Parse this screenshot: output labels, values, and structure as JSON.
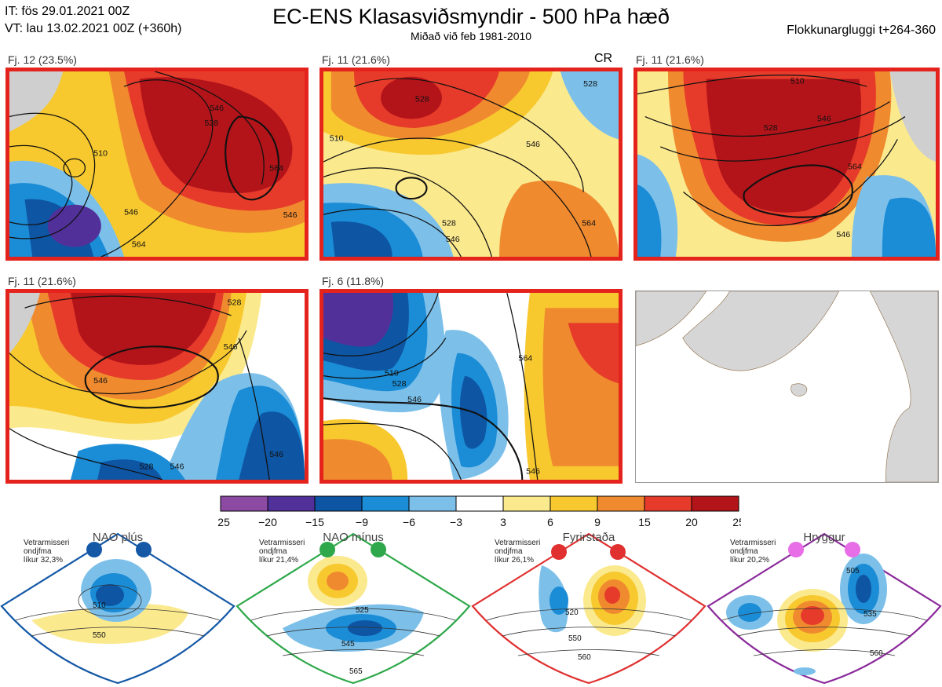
{
  "header": {
    "init_time": "IT: fös 29.01.2021 00Z",
    "valid_time": "VT: lau 13.02.2021 00Z  (+360h)",
    "title": "EC-ENS Klasasviðsmyndir - 500 hPa hæð",
    "subtitle": "Miðað við feb 1981-2010",
    "window": "Flokkunargluggi t+264-360"
  },
  "panels": [
    {
      "label": "Fj. 12 (23.5%)",
      "tag": "",
      "contour_labels": [
        "546",
        "528",
        "564",
        "546",
        "510",
        "546",
        "564"
      ]
    },
    {
      "label": "Fj. 11 (21.6%)",
      "tag": "CR",
      "contour_labels": [
        "528",
        "546",
        "510",
        "528",
        "546",
        "564",
        "528"
      ]
    },
    {
      "label": "Fj. 11 (21.6%)",
      "tag": "",
      "contour_labels": [
        "510",
        "528",
        "546",
        "564",
        "546"
      ]
    },
    {
      "label": "Fj. 11 (21.6%)",
      "tag": "",
      "contour_labels": [
        "528",
        "546",
        "546",
        "528",
        "546",
        "546"
      ]
    },
    {
      "label": "Fj. 6 (11.8%)",
      "tag": "",
      "contour_labels": [
        "510",
        "528",
        "546",
        "564",
        "546"
      ]
    }
  ],
  "chart_data": {
    "type": "heatmap",
    "title": "EC-ENS Klasasviðsmyndir - 500 hPa hæð",
    "variable": "500 hPa height anomaly",
    "colorbar": {
      "ticks": [
        "−25",
        "−20",
        "−15",
        "−9",
        "−6",
        "−3",
        "3",
        "6",
        "9",
        "15",
        "20",
        "25"
      ],
      "colors": [
        "#8c4aa3",
        "#52309a",
        "#0e55a3",
        "#1b8cd6",
        "#7cc0ea",
        "#ffffff",
        "#fbe98e",
        "#f7c92f",
        "#f08a2f",
        "#e63b2a",
        "#b3141a"
      ]
    },
    "clusters": [
      {
        "name": "Fj. 12",
        "percent": 23.5
      },
      {
        "name": "Fj. 11",
        "percent": 21.6
      },
      {
        "name": "Fj. 11",
        "percent": 21.6
      },
      {
        "name": "Fj. 11",
        "percent": 21.6
      },
      {
        "name": "Fj. 6",
        "percent": 11.8
      }
    ]
  },
  "regimes": [
    {
      "name": "NAO plús",
      "meta1": "Vetrarmisseri",
      "meta2": "ondjfma",
      "meta3": "líkur 32,3%",
      "color": "#1458a6",
      "contours": [
        "510",
        "550"
      ]
    },
    {
      "name": "NAO mínus",
      "meta1": "Vetrarmisseri",
      "meta2": "ondjfma",
      "meta3": "líkur 21,4%",
      "color": "#2ea84a",
      "contours": [
        "525",
        "545",
        "565"
      ]
    },
    {
      "name": "Fyrirstaða",
      "meta1": "Vetrarmisseri",
      "meta2": "ondjfma",
      "meta3": "líkur 26,1%",
      "color": "#e03030",
      "contours": [
        "520",
        "550",
        "560"
      ]
    },
    {
      "name": "Hryggur",
      "meta1": "Vetrarmisseri",
      "meta2": "ondjfma",
      "meta3": "líkur 20,2%",
      "color": "#8a2a9a",
      "contours": [
        "505",
        "535",
        "560"
      ]
    }
  ]
}
